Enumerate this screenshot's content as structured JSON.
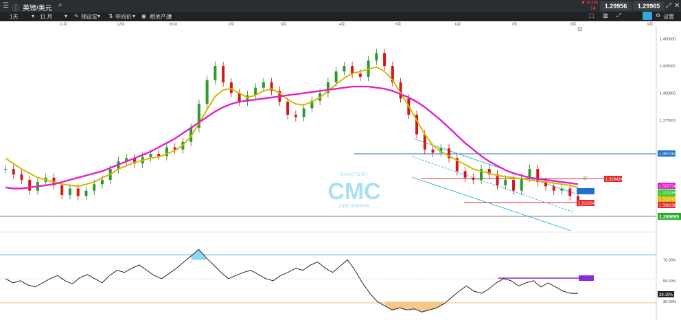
{
  "header": {
    "symbol": "英镑/美元",
    "change_pct": "▼ 0.1%",
    "change_pts": "14",
    "sell_price": "1.29956",
    "buy_price": "1.29965"
  },
  "toolbar": {
    "interval": "1天",
    "range": "11 月",
    "preset": "预设定",
    "midprice": "中间价",
    "related": "相关产品",
    "settings": "设置"
  },
  "watermark": {
    "line1": "CHARTS BY",
    "logo": "CMC",
    "line2": "cmc markets"
  },
  "chart_data": [
    {
      "type": "candlestick",
      "instrument": "GBP/USD",
      "x_ticks": [
        "11月",
        "12月",
        "2018",
        "2月",
        "3月",
        "4月",
        "5月",
        "6月",
        "7月",
        "8月",
        "9月"
      ],
      "y_ticks": [
        "1.450000",
        "1.425000",
        "1.400000",
        "1.375000"
      ],
      "ylim": [
        1.287,
        1.458
      ],
      "price_labels": {
        "current": "1.299695",
        "red_levels": [
          "1.329424",
          "1.313204",
          "1.308236"
        ],
        "blue_level": "1.357262",
        "ma_labels": [
          "1.322714",
          "1.313286",
          "1.313297"
        ]
      },
      "close_approx": [
        1.33,
        1.325,
        1.32,
        1.31,
        1.318,
        1.322,
        1.315,
        1.306,
        1.312,
        1.305,
        1.31,
        1.316,
        1.32,
        1.33,
        1.337,
        1.34,
        1.335,
        1.341,
        1.344,
        1.342,
        1.35,
        1.348,
        1.355,
        1.368,
        1.39,
        1.412,
        1.425,
        1.41,
        1.4,
        1.392,
        1.398,
        1.405,
        1.41,
        1.402,
        1.392,
        1.38,
        1.378,
        1.386,
        1.393,
        1.4,
        1.41,
        1.42,
        1.425,
        1.418,
        1.415,
        1.43,
        1.437,
        1.425,
        1.41,
        1.395,
        1.38,
        1.362,
        1.348,
        1.345,
        1.349,
        1.34,
        1.328,
        1.322,
        1.32,
        1.33,
        1.325,
        1.315,
        1.32,
        1.31,
        1.322,
        1.33,
        1.318,
        1.314,
        1.31,
        1.312,
        1.305,
        1.299
      ],
      "series": [
        {
          "name": "MA short",
          "color": "#d4b800",
          "values": [
            1.34,
            1.335,
            1.33,
            1.326,
            1.322,
            1.32,
            1.318,
            1.316,
            1.315,
            1.314,
            1.316,
            1.318,
            1.322,
            1.325,
            1.33,
            1.333,
            1.336,
            1.338,
            1.34,
            1.341,
            1.344,
            1.347,
            1.352,
            1.36,
            1.372,
            1.385,
            1.397,
            1.403,
            1.404,
            1.4,
            1.396,
            1.398,
            1.402,
            1.404,
            1.4,
            1.394,
            1.39,
            1.389,
            1.392,
            1.396,
            1.402,
            1.408,
            1.414,
            1.418,
            1.42,
            1.422,
            1.424,
            1.42,
            1.412,
            1.4,
            1.388,
            1.375,
            1.362,
            1.352,
            1.346,
            1.342,
            1.338,
            1.334,
            1.33,
            1.328,
            1.326,
            1.324,
            1.323,
            1.322,
            1.321,
            1.32,
            1.319,
            1.318,
            1.317,
            1.316,
            1.315,
            1.313
          ]
        },
        {
          "name": "MA long",
          "color": "#e020c8",
          "values": [
            1.313,
            1.312,
            1.312,
            1.313,
            1.314,
            1.315,
            1.316,
            1.318,
            1.32,
            1.322,
            1.324,
            1.326,
            1.328,
            1.331,
            1.334,
            1.337,
            1.34,
            1.343,
            1.346,
            1.35,
            1.354,
            1.358,
            1.363,
            1.368,
            1.373,
            1.378,
            1.383,
            1.387,
            1.39,
            1.392,
            1.393,
            1.394,
            1.395,
            1.396,
            1.397,
            1.398,
            1.399,
            1.4,
            1.401,
            1.402,
            1.403,
            1.404,
            1.405,
            1.406,
            1.406,
            1.406,
            1.405,
            1.404,
            1.402,
            1.399,
            1.396,
            1.392,
            1.387,
            1.381,
            1.375,
            1.368,
            1.361,
            1.354,
            1.348,
            1.342,
            1.337,
            1.333,
            1.329,
            1.326,
            1.324,
            1.322,
            1.321,
            1.32,
            1.319,
            1.318,
            1.317,
            1.316
          ]
        }
      ]
    },
    {
      "type": "line",
      "y_ticks": [
        "70.00%",
        "50.00%",
        "30.00%"
      ],
      "ylim": [
        15,
        92
      ],
      "current_label": "38.19%",
      "thresholds": [
        70,
        50,
        30
      ],
      "values": [
        52,
        48,
        50,
        46,
        44,
        48,
        52,
        55,
        50,
        47,
        53,
        56,
        52,
        48,
        55,
        60,
        58,
        62,
        65,
        60,
        55,
        52,
        57,
        62,
        68,
        74,
        80,
        72,
        65,
        58,
        52,
        55,
        58,
        60,
        56,
        52,
        50,
        55,
        58,
        62,
        60,
        65,
        68,
        62,
        58,
        64,
        70,
        60,
        48,
        38,
        30,
        26,
        22,
        24,
        22,
        23,
        20,
        22,
        24,
        28,
        34,
        40,
        45,
        40,
        38,
        42,
        48,
        52,
        50,
        45,
        48,
        50,
        44,
        48,
        44,
        40,
        38,
        38
      ]
    }
  ]
}
